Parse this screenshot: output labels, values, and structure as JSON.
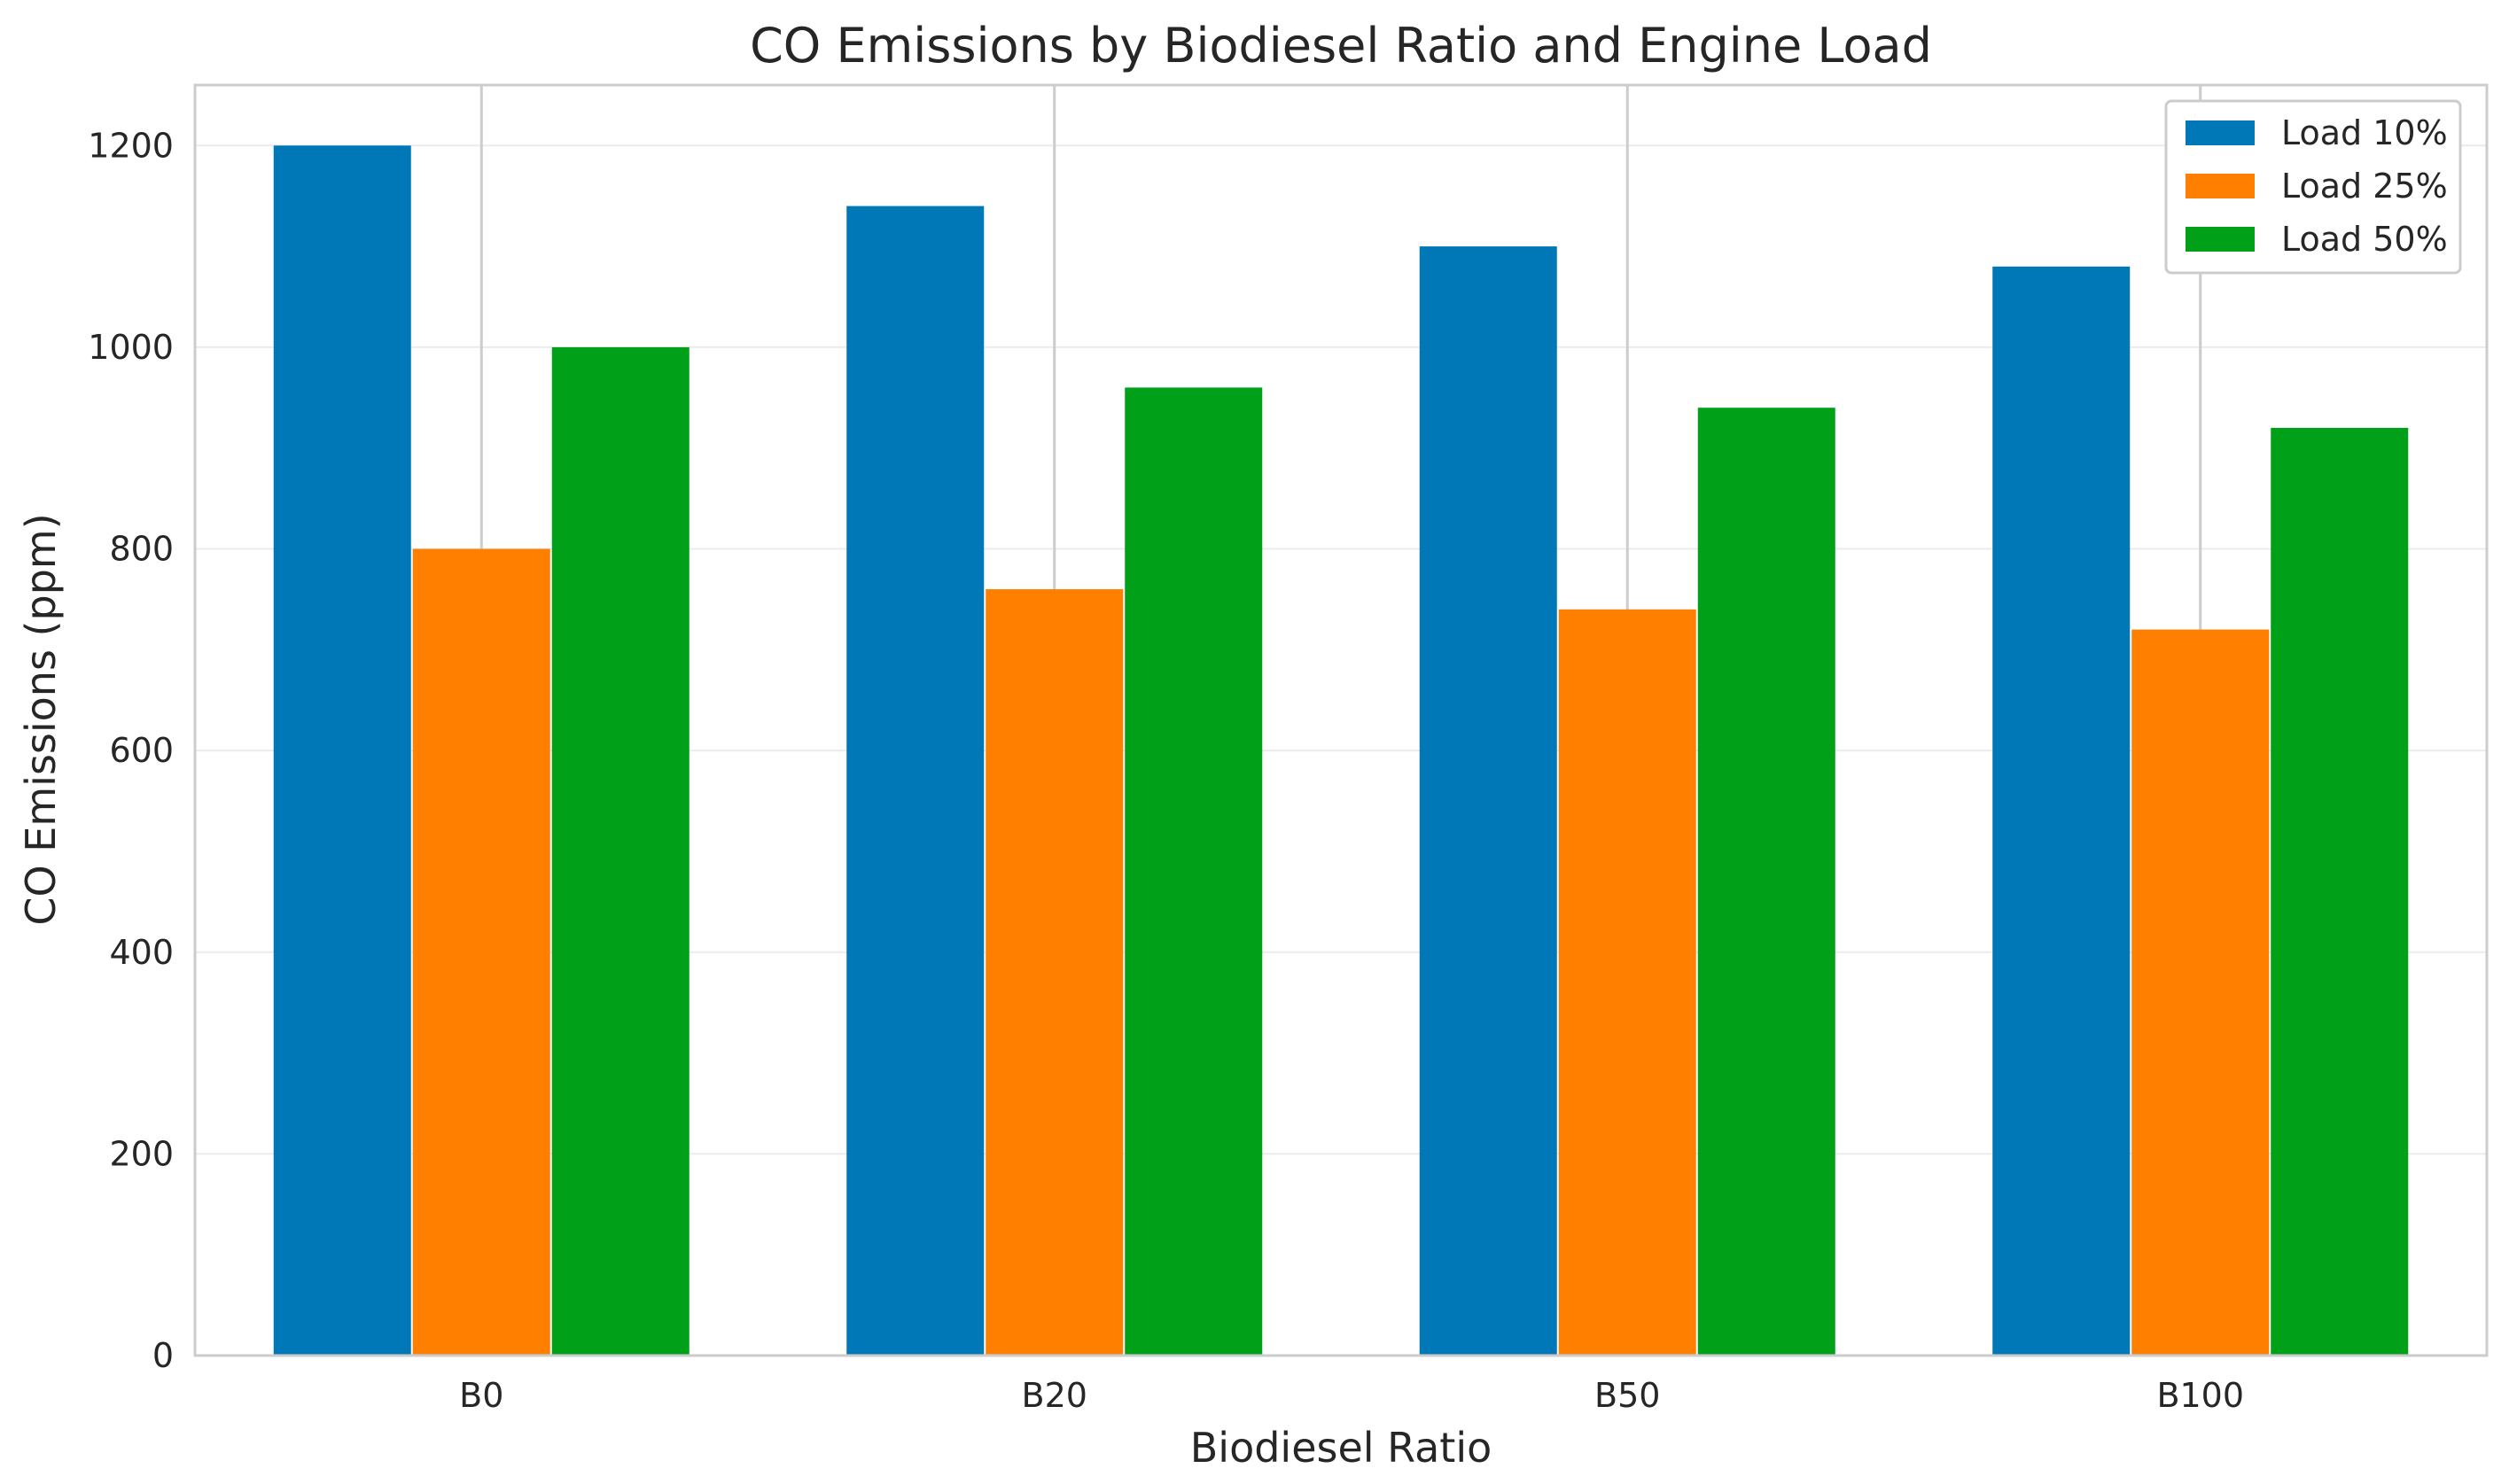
{
  "chart_data": {
    "type": "bar",
    "title": "CO Emissions by Biodiesel Ratio and Engine Load",
    "xlabel": "Biodiesel Ratio",
    "ylabel": "CO Emissions (ppm)",
    "categories": [
      "B0",
      "B20",
      "B50",
      "B100"
    ],
    "series": [
      {
        "name": "Load 10%",
        "color": "#0077b6",
        "values": [
          1200,
          1140,
          1100,
          1080
        ]
      },
      {
        "name": "Load 25%",
        "color": "#ff7f00",
        "values": [
          800,
          760,
          740,
          720
        ]
      },
      {
        "name": "Load 50%",
        "color": "#00a018",
        "values": [
          1000,
          960,
          940,
          920
        ]
      }
    ],
    "ylim": [
      0,
      1260
    ],
    "yticks": [
      0,
      200,
      400,
      600,
      800,
      1000,
      1200
    ],
    "grid": true,
    "legend_position": "top-right"
  }
}
